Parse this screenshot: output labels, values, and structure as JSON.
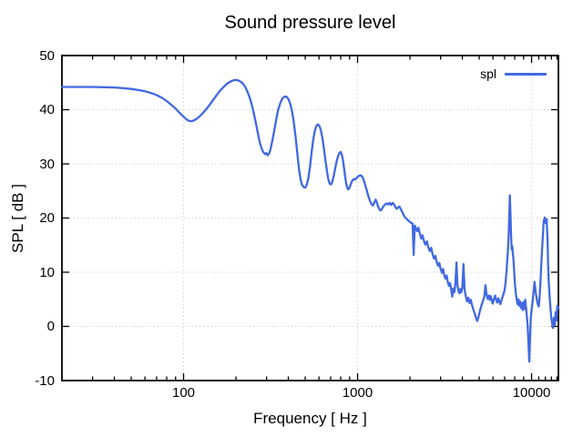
{
  "colors": {
    "line": "#4169e1",
    "grid": "#c4c4c4",
    "frame": "#000000",
    "background": "#ffffff",
    "text": "#000000"
  },
  "legend": {
    "label": "spl"
  },
  "chart_data": {
    "type": "line",
    "title": "Sound pressure level",
    "xlabel": "Frequency [ Hz ]",
    "ylabel": "SPL [ dB ]",
    "x_scale": "log",
    "xlim": [
      20,
      14260
    ],
    "ylim": [
      -10,
      50
    ],
    "x_major_ticks": [
      100,
      1000,
      10000
    ],
    "x_major_tick_labels": [
      "100",
      "1000",
      "10000"
    ],
    "x_minor_ticks": [
      30,
      40,
      50,
      60,
      70,
      80,
      90,
      200,
      300,
      400,
      500,
      600,
      700,
      800,
      900,
      2000,
      3000,
      4000,
      5000,
      6000,
      7000,
      8000,
      9000,
      11000,
      12000,
      13000,
      14000
    ],
    "y_ticks": [
      50,
      40,
      30,
      20,
      10,
      0,
      -10
    ],
    "y_tick_labels": [
      "50",
      "40",
      "30",
      "20",
      "10",
      "0",
      "-10"
    ],
    "grid": true,
    "legend_position": "top-right",
    "series": [
      {
        "name": "spl",
        "color": "#4169e1",
        "points": [
          [
            20,
            44.2
          ],
          [
            25,
            44.2
          ],
          [
            30,
            44.2
          ],
          [
            35,
            44.15
          ],
          [
            40,
            44.1
          ],
          [
            44,
            44.0
          ],
          [
            48,
            43.9
          ],
          [
            52,
            43.75
          ],
          [
            56,
            43.6
          ],
          [
            60,
            43.4
          ],
          [
            64,
            43.15
          ],
          [
            68,
            42.85
          ],
          [
            72,
            42.5
          ],
          [
            76,
            42.1
          ],
          [
            80,
            41.6
          ],
          [
            85,
            40.9
          ],
          [
            90,
            40.2
          ],
          [
            95,
            39.4
          ],
          [
            100,
            38.7
          ],
          [
            104,
            38.2
          ],
          [
            108,
            37.9
          ],
          [
            112,
            37.9
          ],
          [
            116,
            38.1
          ],
          [
            120,
            38.4
          ],
          [
            125,
            38.9
          ],
          [
            130,
            39.5
          ],
          [
            136,
            40.2
          ],
          [
            142,
            41.0
          ],
          [
            148,
            41.8
          ],
          [
            155,
            42.7
          ],
          [
            162,
            43.5
          ],
          [
            170,
            44.2
          ],
          [
            178,
            44.8
          ],
          [
            186,
            45.2
          ],
          [
            194,
            45.45
          ],
          [
            202,
            45.5
          ],
          [
            210,
            45.3
          ],
          [
            218,
            44.9
          ],
          [
            226,
            44.2
          ],
          [
            234,
            43.2
          ],
          [
            242,
            41.9
          ],
          [
            250,
            40.2
          ],
          [
            258,
            38.2
          ],
          [
            266,
            36.0
          ],
          [
            274,
            34.0
          ],
          [
            282,
            32.7
          ],
          [
            288,
            32.1
          ],
          [
            294,
            31.8
          ],
          [
            299,
            32.0
          ],
          [
            304,
            31.6
          ],
          [
            310,
            31.9
          ],
          [
            316,
            32.7
          ],
          [
            322,
            33.9
          ],
          [
            330,
            35.7
          ],
          [
            340,
            38.0
          ],
          [
            350,
            40.0
          ],
          [
            360,
            41.3
          ],
          [
            370,
            42.1
          ],
          [
            380,
            42.4
          ],
          [
            390,
            42.4
          ],
          [
            400,
            42.0
          ],
          [
            410,
            41.1
          ],
          [
            420,
            39.7
          ],
          [
            430,
            37.7
          ],
          [
            440,
            35.1
          ],
          [
            450,
            32.1
          ],
          [
            460,
            29.2
          ],
          [
            470,
            27.2
          ],
          [
            480,
            26.1
          ],
          [
            490,
            25.7
          ],
          [
            500,
            25.6
          ],
          [
            510,
            26.1
          ],
          [
            520,
            27.2
          ],
          [
            532,
            29.3
          ],
          [
            544,
            32.0
          ],
          [
            556,
            34.4
          ],
          [
            568,
            36.1
          ],
          [
            580,
            37.0
          ],
          [
            592,
            37.3
          ],
          [
            604,
            37.0
          ],
          [
            616,
            36.2
          ],
          [
            628,
            34.8
          ],
          [
            640,
            32.9
          ],
          [
            654,
            30.6
          ],
          [
            668,
            28.5
          ],
          [
            680,
            27.1
          ],
          [
            692,
            26.3
          ],
          [
            704,
            26.2
          ],
          [
            716,
            26.7
          ],
          [
            730,
            27.8
          ],
          [
            744,
            29.2
          ],
          [
            758,
            30.5
          ],
          [
            772,
            31.4
          ],
          [
            786,
            32.0
          ],
          [
            800,
            32.2
          ],
          [
            812,
            31.7
          ],
          [
            824,
            30.7
          ],
          [
            836,
            29.2
          ],
          [
            848,
            27.7
          ],
          [
            860,
            26.4
          ],
          [
            872,
            25.6
          ],
          [
            884,
            25.3
          ],
          [
            896,
            25.5
          ],
          [
            908,
            26.0
          ],
          [
            922,
            26.6
          ],
          [
            936,
            27.0
          ],
          [
            950,
            27.2
          ],
          [
            965,
            27.1
          ],
          [
            980,
            27.3
          ],
          [
            1000,
            27.6
          ],
          [
            1020,
            27.8
          ],
          [
            1040,
            27.9
          ],
          [
            1060,
            27.7
          ],
          [
            1080,
            27.2
          ],
          [
            1100,
            26.4
          ],
          [
            1125,
            25.3
          ],
          [
            1150,
            24.2
          ],
          [
            1175,
            23.3
          ],
          [
            1200,
            22.6
          ],
          [
            1225,
            22.3
          ],
          [
            1250,
            22.9
          ],
          [
            1270,
            23.4
          ],
          [
            1290,
            22.9
          ],
          [
            1310,
            22.2
          ],
          [
            1335,
            21.6
          ],
          [
            1360,
            21.4
          ],
          [
            1385,
            21.8
          ],
          [
            1410,
            22.2
          ],
          [
            1440,
            22.5
          ],
          [
            1470,
            22.7
          ],
          [
            1500,
            22.5
          ],
          [
            1530,
            22.8
          ],
          [
            1560,
            22.4
          ],
          [
            1590,
            22.8
          ],
          [
            1620,
            22.5
          ],
          [
            1650,
            22.0
          ],
          [
            1680,
            21.7
          ],
          [
            1710,
            22.0
          ],
          [
            1740,
            22.1
          ],
          [
            1770,
            21.7
          ],
          [
            1800,
            21.2
          ],
          [
            1830,
            20.7
          ],
          [
            1860,
            20.3
          ],
          [
            1890,
            20.0
          ],
          [
            1920,
            19.8
          ],
          [
            1950,
            19.6
          ],
          [
            1980,
            19.4
          ],
          [
            2010,
            19.2
          ],
          [
            2040,
            19.1
          ],
          [
            2070,
            19.0
          ],
          [
            2100,
            13.2
          ],
          [
            2130,
            18.6
          ],
          [
            2160,
            18.2
          ],
          [
            2200,
            17.6
          ],
          [
            2240,
            18.2
          ],
          [
            2280,
            17.1
          ],
          [
            2320,
            16.2
          ],
          [
            2360,
            16.8
          ],
          [
            2400,
            15.9
          ],
          [
            2450,
            15.1
          ],
          [
            2500,
            15.7
          ],
          [
            2550,
            14.6
          ],
          [
            2600,
            13.9
          ],
          [
            2650,
            14.5
          ],
          [
            2700,
            13.3
          ],
          [
            2750,
            12.5
          ],
          [
            2800,
            13.0
          ],
          [
            2850,
            11.9
          ],
          [
            2900,
            11.2
          ],
          [
            2950,
            11.7
          ],
          [
            3000,
            10.6
          ],
          [
            3050,
            9.9
          ],
          [
            3100,
            10.6
          ],
          [
            3150,
            9.4
          ],
          [
            3200,
            8.8
          ],
          [
            3250,
            9.4
          ],
          [
            3300,
            8.2
          ],
          [
            3350,
            7.5
          ],
          [
            3400,
            8.0
          ],
          [
            3450,
            6.8
          ],
          [
            3500,
            5.5
          ],
          [
            3550,
            7.0
          ],
          [
            3600,
            6.3
          ],
          [
            3650,
            7.9
          ],
          [
            3700,
            11.8
          ],
          [
            3750,
            7.6
          ],
          [
            3800,
            6.6
          ],
          [
            3850,
            6.1
          ],
          [
            3900,
            6.9
          ],
          [
            3950,
            6.3
          ],
          [
            4000,
            7.1
          ],
          [
            4060,
            11.5
          ],
          [
            4120,
            6.8
          ],
          [
            4190,
            5.5
          ],
          [
            4260,
            4.6
          ],
          [
            4330,
            5.3
          ],
          [
            4400,
            4.3
          ],
          [
            4470,
            4.9
          ],
          [
            4550,
            3.9
          ],
          [
            4630,
            3.1
          ],
          [
            4710,
            2.4
          ],
          [
            4790,
            1.6
          ],
          [
            4870,
            1.0
          ],
          [
            4950,
            1.7
          ],
          [
            5030,
            2.7
          ],
          [
            5110,
            3.5
          ],
          [
            5190,
            4.2
          ],
          [
            5270,
            4.8
          ],
          [
            5350,
            5.5
          ],
          [
            5430,
            7.6
          ],
          [
            5510,
            5.9
          ],
          [
            5590,
            5.1
          ],
          [
            5670,
            5.7
          ],
          [
            5750,
            4.9
          ],
          [
            5830,
            5.6
          ],
          [
            5910,
            4.7
          ],
          [
            5990,
            4.2
          ],
          [
            6080,
            5.1
          ],
          [
            6170,
            5.7
          ],
          [
            6260,
            4.9
          ],
          [
            6350,
            4.4
          ],
          [
            6440,
            5.2
          ],
          [
            6530,
            4.6
          ],
          [
            6620,
            4.1
          ],
          [
            6710,
            4.8
          ],
          [
            6800,
            5.4
          ],
          [
            6900,
            6.0
          ],
          [
            7000,
            6.7
          ],
          [
            7100,
            8.2
          ],
          [
            7200,
            10.8
          ],
          [
            7300,
            13.8
          ],
          [
            7380,
            16.8
          ],
          [
            7440,
            20.0
          ],
          [
            7500,
            24.2
          ],
          [
            7560,
            20.8
          ],
          [
            7620,
            17.0
          ],
          [
            7680,
            14.2
          ],
          [
            7740,
            14.8
          ],
          [
            7800,
            13.6
          ],
          [
            7870,
            12.3
          ],
          [
            7940,
            10.3
          ],
          [
            8020,
            7.8
          ],
          [
            8100,
            6.4
          ],
          [
            8200,
            5.1
          ],
          [
            8300,
            4.1
          ],
          [
            8400,
            5.0
          ],
          [
            8500,
            3.8
          ],
          [
            8600,
            4.6
          ],
          [
            8700,
            3.4
          ],
          [
            8800,
            4.3
          ],
          [
            8900,
            3.0
          ],
          [
            9000,
            4.5
          ],
          [
            9100,
            3.2
          ],
          [
            9200,
            4.9
          ],
          [
            9300,
            3.4
          ],
          [
            9400,
            1.8
          ],
          [
            9500,
            0.0
          ],
          [
            9600,
            -3.2
          ],
          [
            9700,
            -6.5
          ],
          [
            9800,
            -2.0
          ],
          [
            9900,
            1.6
          ],
          [
            10000,
            3.1
          ],
          [
            10100,
            4.2
          ],
          [
            10250,
            6.1
          ],
          [
            10400,
            8.2
          ],
          [
            10550,
            6.4
          ],
          [
            10700,
            5.1
          ],
          [
            10850,
            4.1
          ],
          [
            11000,
            3.7
          ],
          [
            11150,
            6.0
          ],
          [
            11300,
            9.6
          ],
          [
            11450,
            13.4
          ],
          [
            11600,
            16.6
          ],
          [
            11750,
            19.4
          ],
          [
            11900,
            20.1
          ],
          [
            12050,
            19.1
          ],
          [
            12200,
            19.8
          ],
          [
            12350,
            15.9
          ],
          [
            12450,
            11.4
          ],
          [
            12550,
            8.2
          ],
          [
            12700,
            5.4
          ],
          [
            12850,
            3.1
          ],
          [
            13000,
            1.5
          ],
          [
            13150,
            0.4
          ],
          [
            13300,
            -0.3
          ],
          [
            13450,
            1.6
          ],
          [
            13600,
            0.3
          ],
          [
            13750,
            2.6
          ],
          [
            13900,
            1.1
          ],
          [
            14050,
            3.8
          ],
          [
            14260,
            3.4
          ]
        ]
      }
    ]
  }
}
